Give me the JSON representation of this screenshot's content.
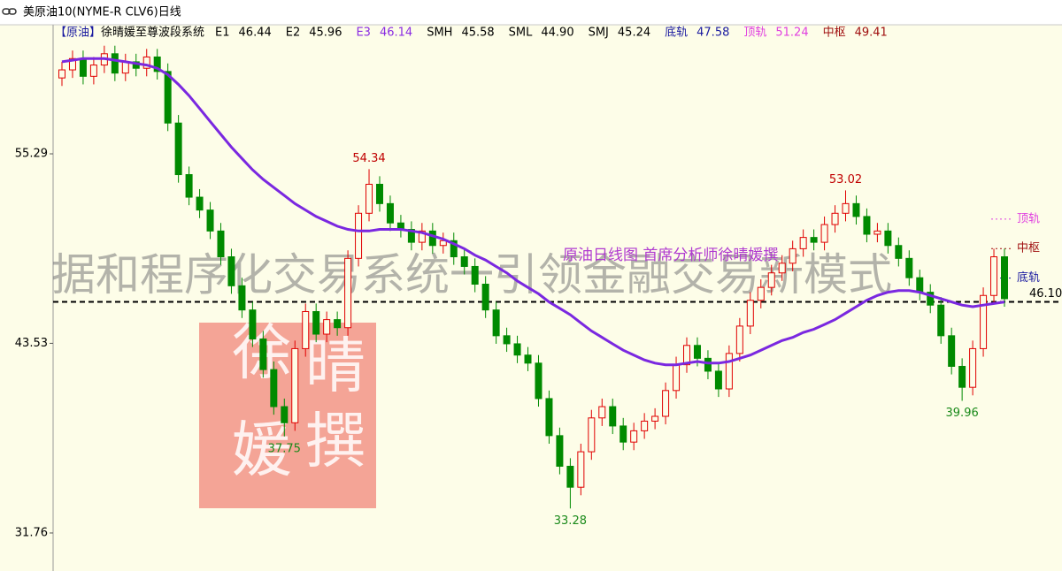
{
  "window_title": "美原油10(NYME-R CLV6)日线",
  "watermark": {
    "banner": "据和程序化交易系统一引领金融交易新模式",
    "caption": "原油日线图  首席分析师徐晴媛撰",
    "stamp": [
      "徐",
      "晴",
      "媛",
      "撰"
    ]
  },
  "chart_data": {
    "type": "candlestick",
    "symbol": "【原油】",
    "indicator": "徐晴媛至尊波段系统",
    "legend": [
      {
        "name": "E1",
        "value": 46.44,
        "color": "#000000"
      },
      {
        "name": "E2",
        "value": 45.96,
        "color": "#000000"
      },
      {
        "name": "E3",
        "value": 46.14,
        "color": "#8a2be2"
      },
      {
        "name": "SMH",
        "value": 45.58,
        "color": "#000000"
      },
      {
        "name": "SML",
        "value": 44.9,
        "value_label": "44.90",
        "color": "#000000"
      },
      {
        "name": "SMJ",
        "value": 45.24,
        "color": "#000000"
      },
      {
        "name": "底轨",
        "value": 47.58,
        "color": "#1a1aa0"
      },
      {
        "name": "顶轨",
        "value": 51.24,
        "color": "#e040e0"
      },
      {
        "name": "中枢",
        "value": 49.41,
        "color": "#a01010"
      }
    ],
    "open": [
      60.0,
      60.5,
      61.2,
      60.1,
      60.8,
      61.5,
      60.3,
      61.0,
      60.6,
      61.3,
      60.4,
      57.2,
      54.0,
      52.6,
      51.8,
      50.5,
      48.9,
      47.1,
      45.6,
      43.8,
      41.9,
      39.6,
      38.6,
      43.2,
      45.5,
      44.1,
      45.0,
      44.5,
      48.8,
      51.6,
      53.4,
      52.2,
      51.0,
      50.6,
      49.8,
      50.5,
      49.6,
      49.9,
      48.9,
      48.3,
      47.2,
      45.6,
      44.0,
      43.5,
      42.8,
      42.3,
      40.1,
      37.8,
      35.9,
      34.6,
      36.8,
      38.9,
      39.6,
      38.4,
      37.4,
      38.1,
      38.7,
      39.0,
      40.6,
      42.2,
      43.4,
      42.6,
      41.8,
      40.7,
      42.9,
      44.6,
      46.2,
      47.0,
      47.9,
      48.5,
      49.4,
      50.1,
      49.8,
      50.9,
      51.6,
      52.2,
      51.4,
      50.3,
      50.5,
      49.6,
      48.8,
      47.6,
      46.7,
      45.9,
      44.0,
      42.1,
      40.8,
      43.2,
      46.5,
      48.9
    ],
    "high": [
      61.0,
      61.7,
      61.7,
      61.3,
      62.0,
      62.0,
      61.5,
      61.5,
      61.8,
      61.8,
      60.9,
      57.7,
      54.5,
      53.1,
      52.3,
      51.0,
      49.4,
      47.6,
      46.1,
      44.3,
      42.4,
      40.1,
      43.7,
      46.0,
      46.0,
      45.5,
      45.5,
      49.3,
      52.1,
      54.34,
      53.9,
      52.7,
      51.5,
      51.1,
      51.0,
      51.0,
      50.4,
      50.4,
      49.4,
      48.8,
      47.7,
      46.1,
      44.5,
      44.0,
      43.3,
      42.8,
      40.6,
      38.3,
      36.4,
      37.3,
      39.4,
      40.1,
      40.1,
      38.9,
      38.6,
      39.2,
      39.5,
      41.1,
      42.7,
      43.9,
      43.9,
      43.1,
      42.3,
      43.4,
      45.1,
      46.7,
      47.5,
      48.4,
      49.0,
      49.9,
      50.6,
      50.6,
      51.4,
      52.1,
      53.02,
      52.7,
      51.9,
      51.0,
      51.0,
      50.1,
      49.3,
      48.1,
      47.2,
      46.4,
      44.5,
      42.6,
      43.7,
      47.0,
      49.4,
      49.4
    ],
    "low": [
      59.5,
      60.0,
      59.6,
      59.6,
      60.3,
      59.8,
      59.8,
      60.1,
      60.1,
      59.9,
      56.7,
      53.5,
      52.1,
      51.3,
      50.0,
      48.4,
      46.6,
      45.1,
      43.3,
      41.4,
      39.1,
      37.75,
      38.1,
      42.7,
      43.6,
      43.6,
      44.0,
      44.0,
      48.3,
      51.1,
      51.7,
      50.5,
      50.1,
      49.3,
      49.3,
      49.1,
      49.1,
      48.4,
      47.8,
      46.7,
      45.1,
      43.5,
      43.0,
      42.3,
      41.8,
      39.6,
      37.3,
      35.4,
      33.28,
      34.1,
      36.3,
      38.4,
      37.9,
      36.9,
      36.9,
      37.6,
      38.2,
      38.5,
      40.1,
      41.7,
      42.1,
      41.3,
      40.2,
      40.2,
      42.4,
      44.1,
      45.7,
      46.5,
      47.4,
      48.0,
      48.9,
      49.3,
      49.3,
      50.4,
      51.1,
      50.9,
      49.8,
      49.8,
      49.1,
      48.3,
      47.1,
      46.2,
      45.4,
      43.5,
      41.6,
      39.96,
      40.3,
      42.7,
      46.0,
      45.8
    ],
    "close": [
      60.5,
      61.2,
      60.1,
      60.8,
      61.5,
      60.3,
      61.0,
      60.6,
      61.3,
      60.4,
      57.2,
      54.0,
      52.6,
      51.8,
      50.5,
      48.9,
      47.1,
      45.6,
      43.8,
      41.9,
      39.6,
      38.6,
      43.2,
      45.5,
      44.1,
      45.0,
      44.5,
      48.8,
      51.6,
      53.4,
      52.2,
      51.0,
      50.6,
      49.8,
      50.5,
      49.6,
      49.9,
      48.9,
      48.3,
      47.2,
      45.6,
      44.0,
      43.5,
      42.8,
      42.3,
      40.1,
      37.8,
      35.9,
      34.6,
      36.8,
      38.9,
      39.6,
      38.4,
      37.4,
      38.1,
      38.7,
      39.0,
      40.6,
      42.2,
      43.4,
      42.6,
      41.8,
      40.7,
      42.9,
      44.6,
      46.2,
      47.0,
      47.9,
      48.5,
      49.4,
      50.1,
      49.8,
      50.9,
      51.6,
      52.2,
      51.4,
      50.3,
      50.5,
      49.6,
      48.8,
      47.6,
      46.7,
      45.9,
      44.0,
      42.1,
      40.8,
      43.2,
      46.5,
      48.9,
      46.3
    ],
    "up_color": "#e00000",
    "down_color": "#008a00",
    "ma_line": {
      "color": "#7a28e0",
      "values": [
        61.0,
        61.1,
        61.2,
        61.2,
        61.2,
        61.1,
        61.0,
        60.9,
        60.8,
        60.6,
        60.2,
        59.6,
        58.9,
        58.1,
        57.3,
        56.5,
        55.7,
        55.0,
        54.3,
        53.7,
        53.2,
        52.7,
        52.2,
        51.8,
        51.4,
        51.1,
        50.8,
        50.6,
        50.5,
        50.5,
        50.6,
        50.6,
        50.6,
        50.5,
        50.4,
        50.2,
        50.0,
        49.7,
        49.4,
        49.0,
        48.7,
        48.3,
        47.9,
        47.4,
        47.0,
        46.6,
        46.1,
        45.7,
        45.3,
        44.8,
        44.3,
        43.9,
        43.5,
        43.1,
        42.8,
        42.5,
        42.3,
        42.2,
        42.2,
        42.3,
        42.4,
        42.3,
        42.3,
        42.4,
        42.6,
        42.8,
        43.1,
        43.4,
        43.7,
        43.9,
        44.2,
        44.4,
        44.7,
        45.0,
        45.4,
        45.8,
        46.2,
        46.5,
        46.7,
        46.8,
        46.8,
        46.7,
        46.5,
        46.3,
        46.1,
        45.9,
        45.8,
        45.9,
        46.0,
        46.1
      ]
    },
    "ylim": [
      29.4,
      63.3
    ],
    "yticks": [
      55.29,
      43.53,
      31.76
    ],
    "reference_line": {
      "value": 46.1,
      "label": "46.10"
    },
    "labeled_highs": [
      29,
      74
    ],
    "labeled_lows": [
      21,
      48,
      85
    ]
  }
}
